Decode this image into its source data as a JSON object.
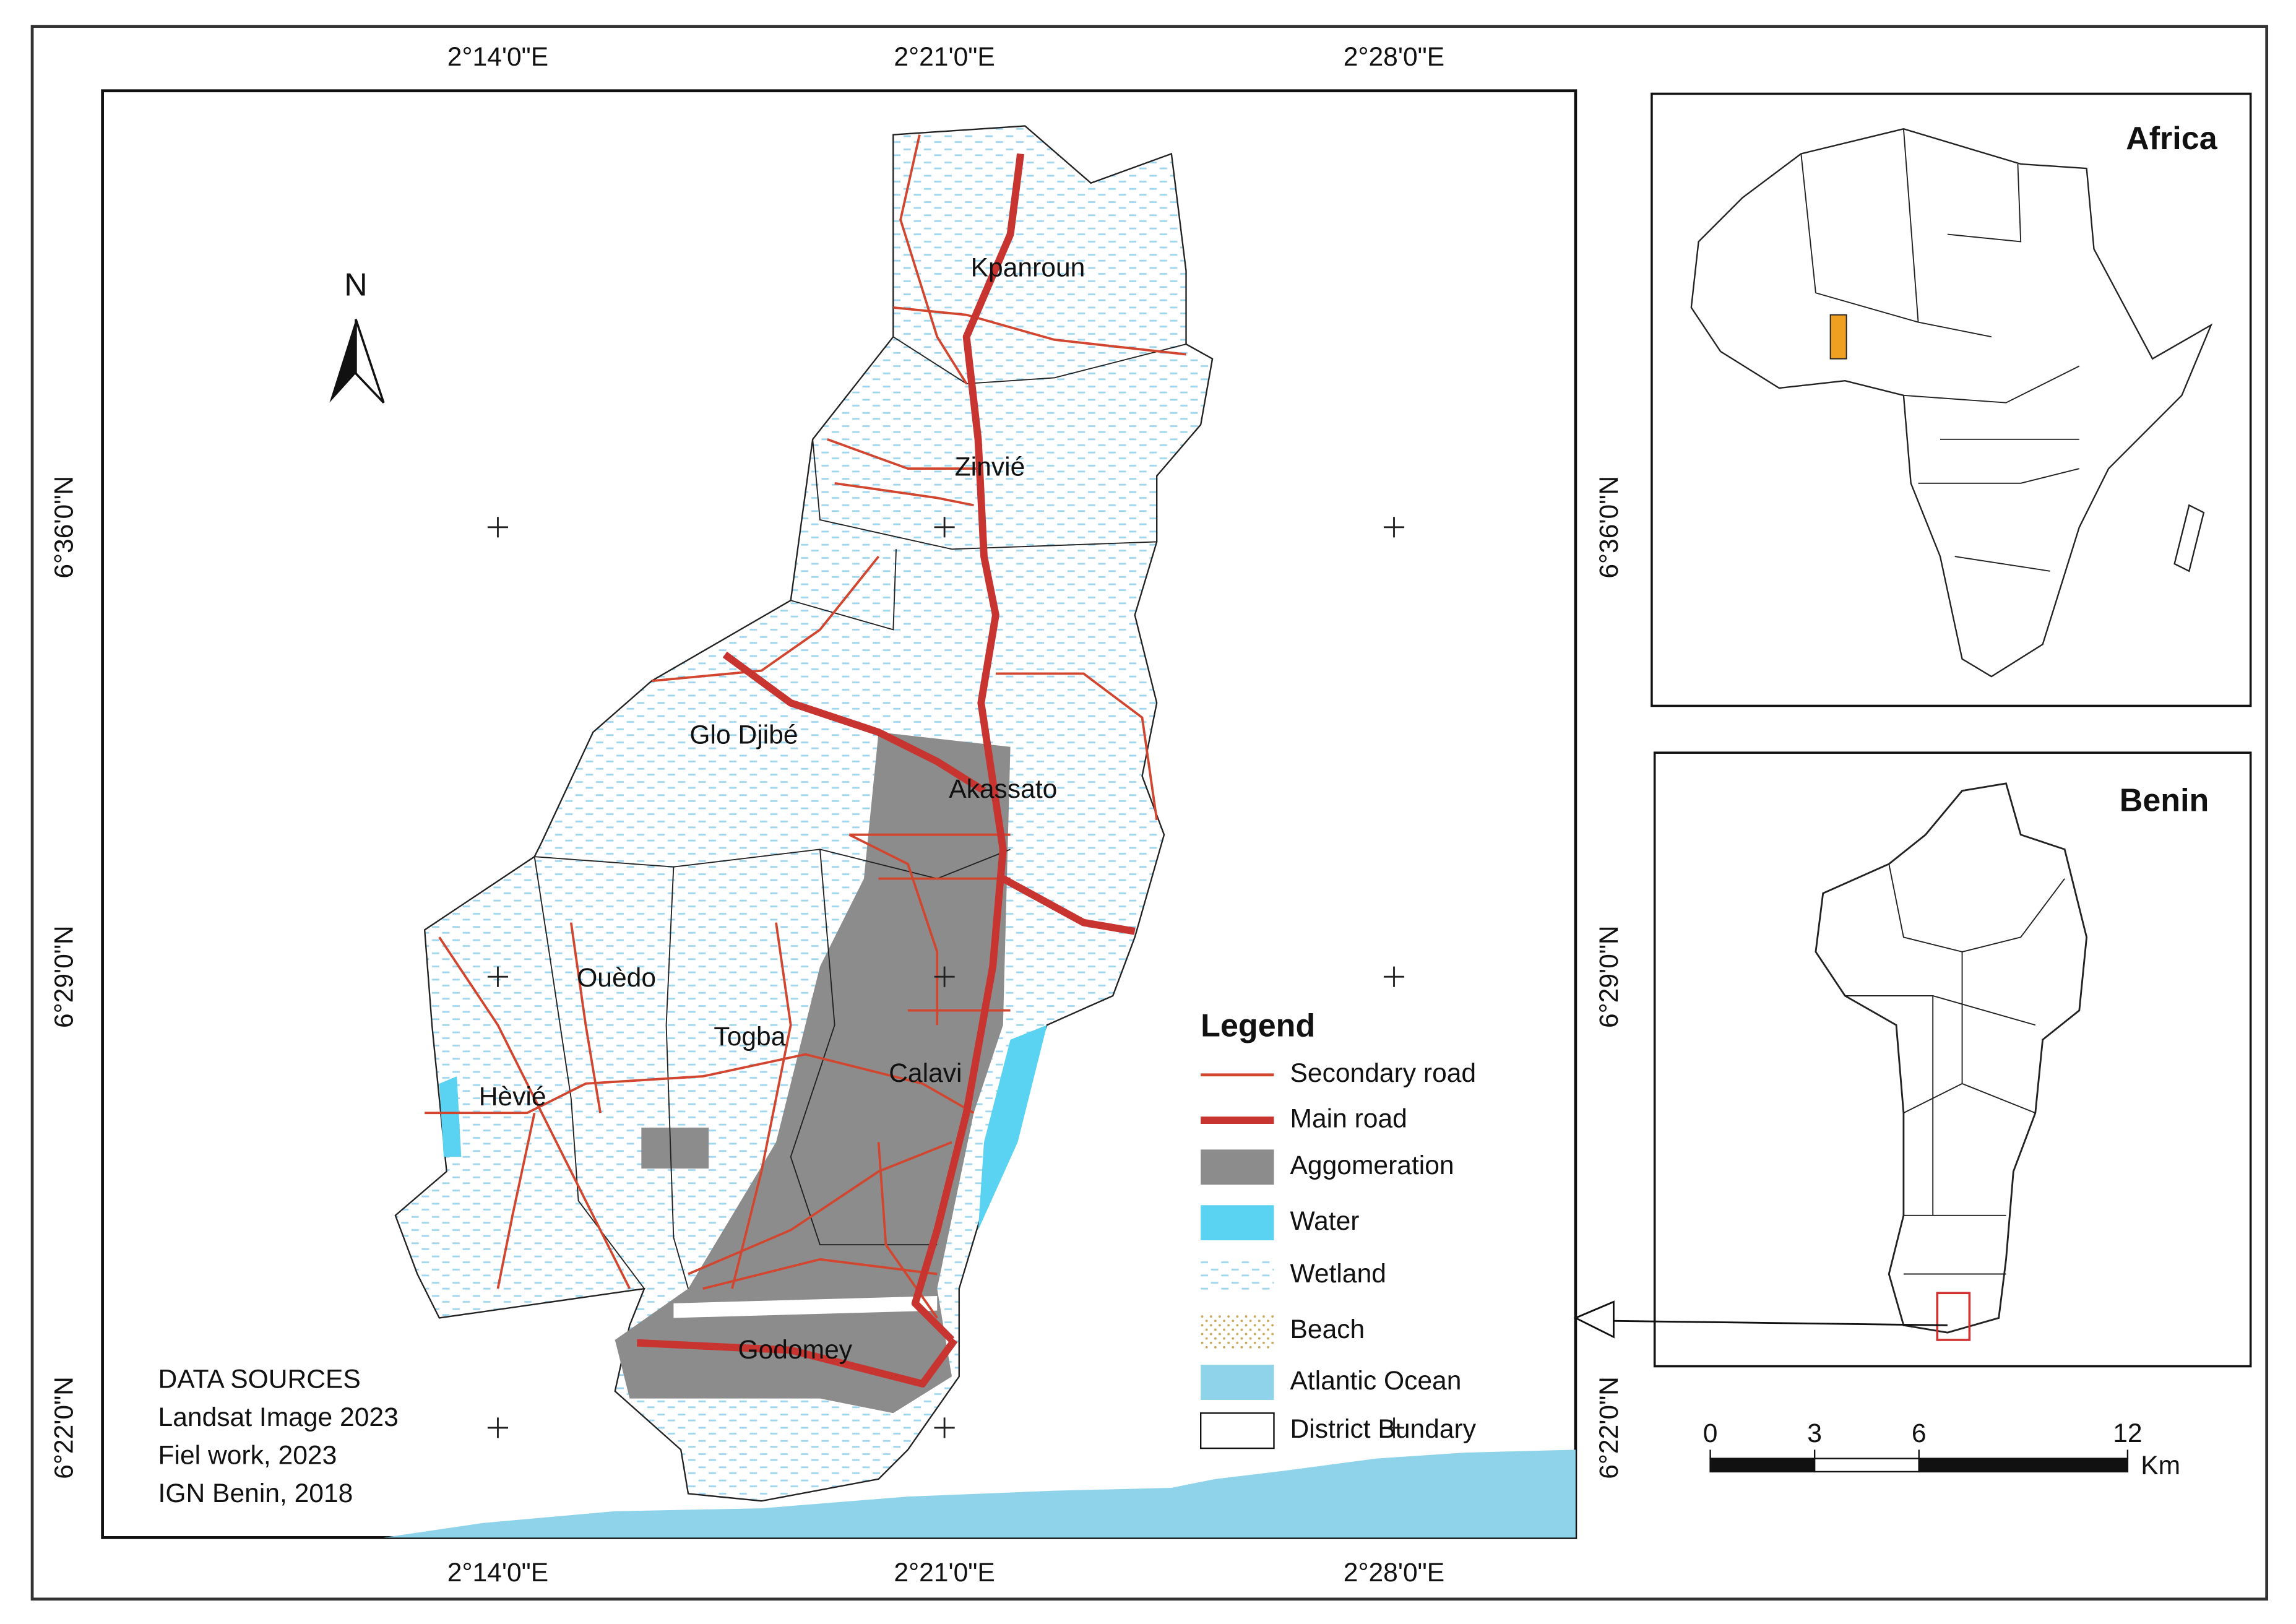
{
  "map": {
    "longitude_labels_top": [
      "2°14'0\"E",
      "2°21'0\"E",
      "2°28'0\"E"
    ],
    "longitude_labels_bottom": [
      "2°14'0\"E",
      "2°21'0\"E",
      "2°28'0\"E"
    ],
    "latitude_labels_left": [
      "6°36'0\"N",
      "6°29'0\"N",
      "6°22'0\"N"
    ],
    "latitude_labels_right": [
      "6°36'0\"N",
      "6°29'0\"N",
      "6°22'0\"N"
    ],
    "north_arrow": "N",
    "place_names": [
      "Kpanroun",
      "Zinvié",
      "Glo Djibé",
      "Akassato",
      "Ouèdo",
      "Togba",
      "Calavi",
      "Hèvié",
      "Godomey"
    ],
    "legend": {
      "title": "Legend",
      "items": [
        "Secondary road",
        "Main road",
        "Aggomeration",
        "Water",
        "Wetland",
        "Beach",
        "Atlantic Ocean",
        "District Bundary"
      ]
    },
    "data_sources": [
      "DATA SOURCES",
      "Landsat Image 2023",
      "Fiel work, 2023",
      "IGN Benin, 2018"
    ],
    "insets": {
      "africa": "Africa",
      "benin": "Benin"
    },
    "scale_bar": {
      "ticks": [
        0,
        3,
        6,
        12
      ],
      "unit": "Km"
    }
  }
}
